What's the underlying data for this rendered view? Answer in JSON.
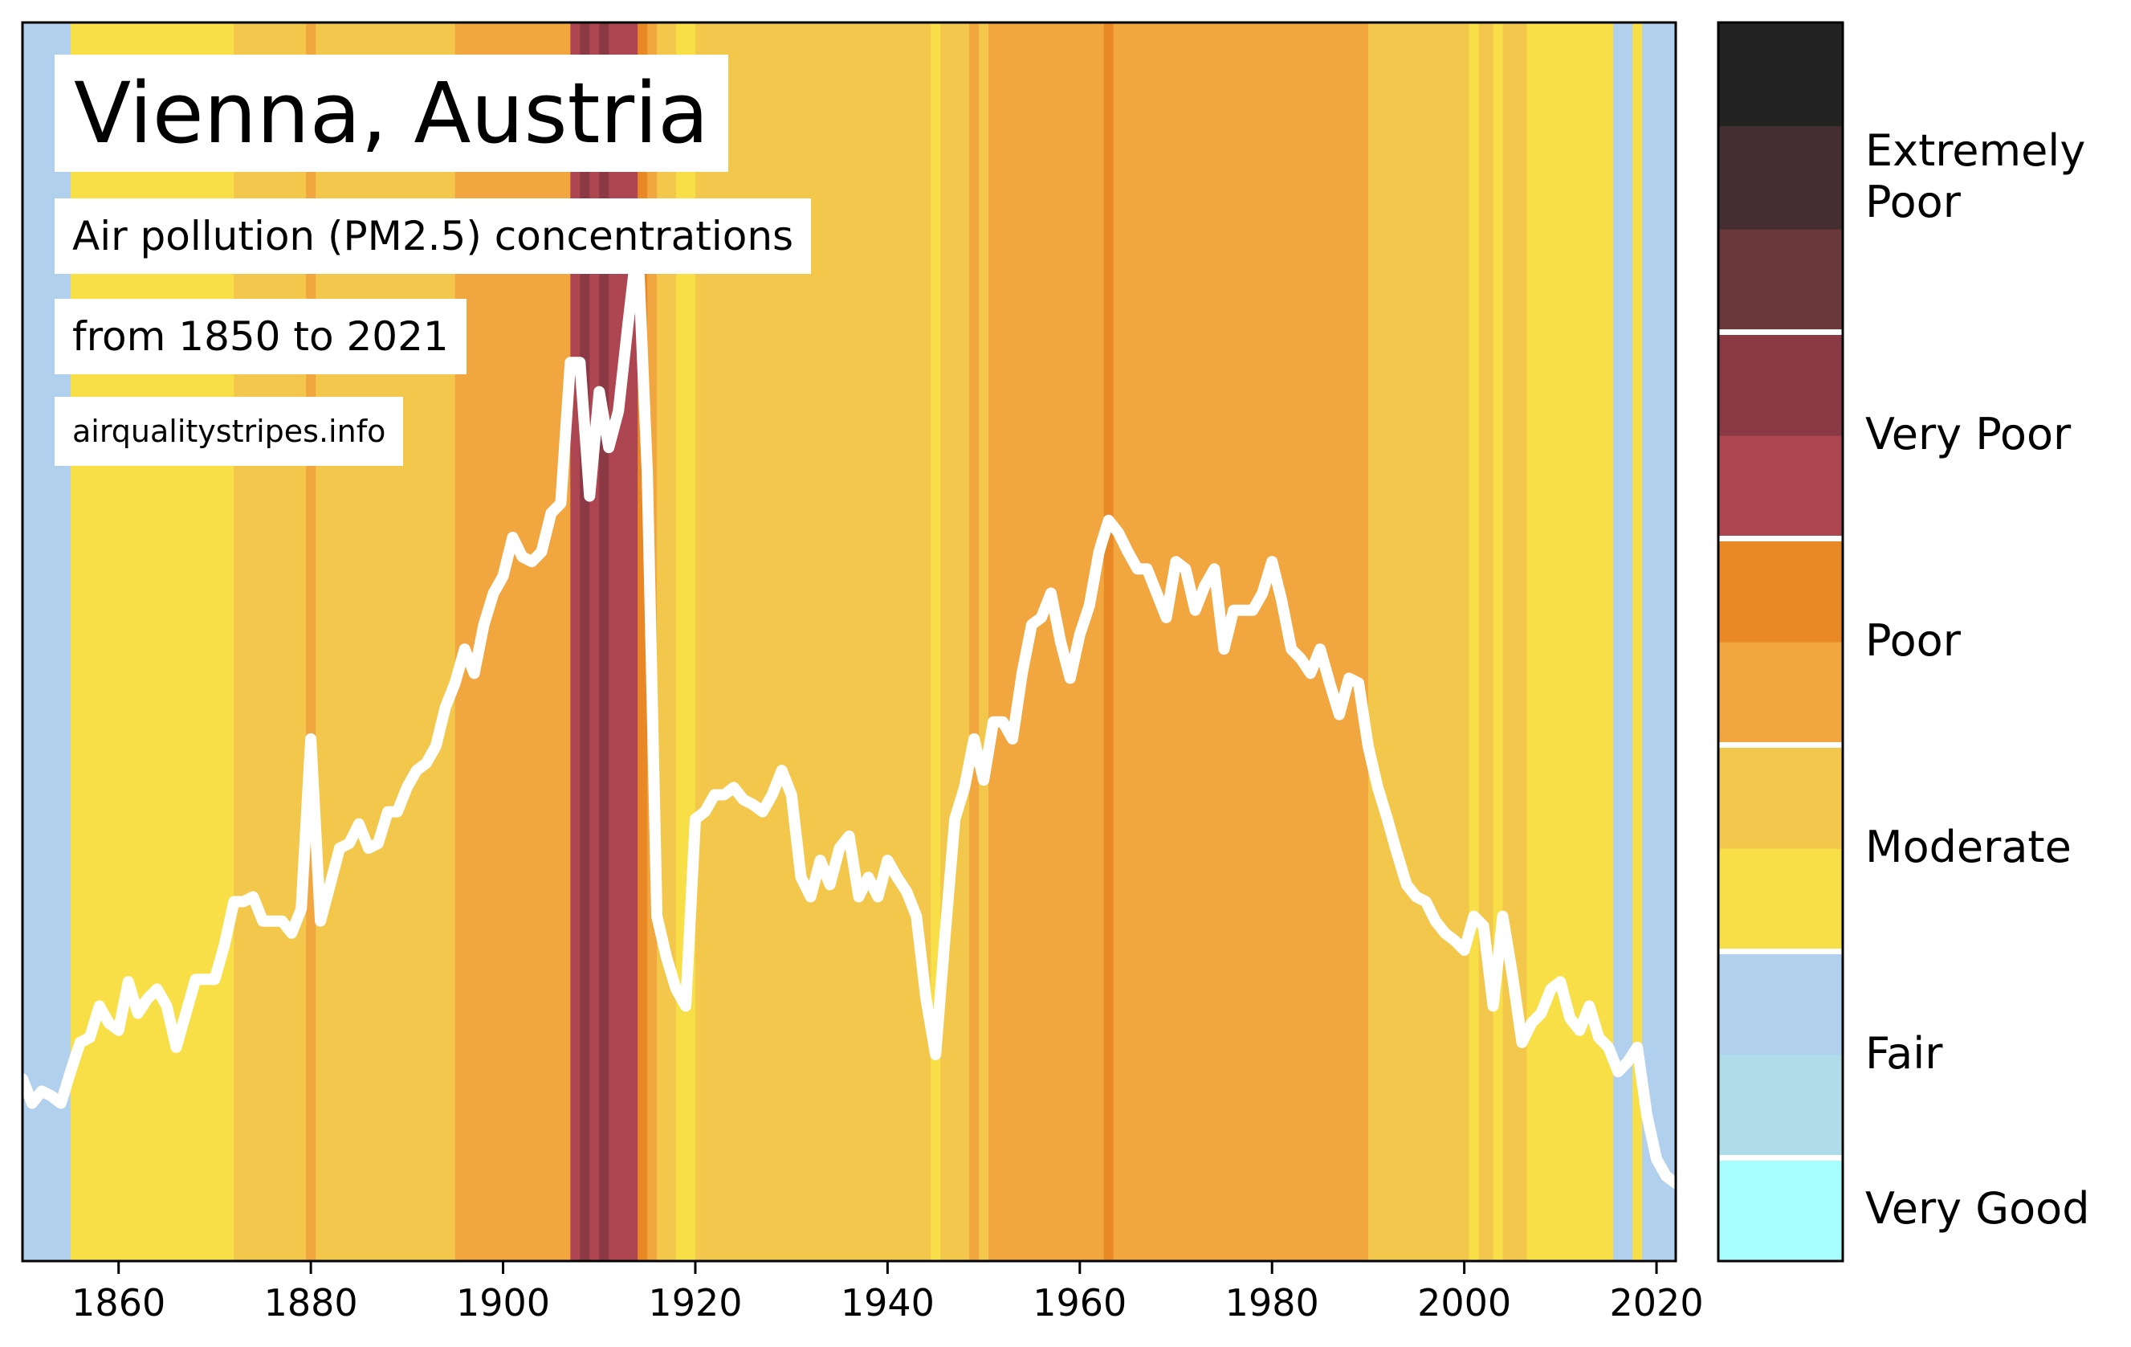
{
  "header": {
    "title": "Vienna, Austria",
    "subtitle_line1": "Air pollution (PM2.5) concentrations",
    "subtitle_line2": "from 1850 to 2021",
    "source": "airqualitystripes.info"
  },
  "chart_data": {
    "type": "line",
    "title": "Vienna, Austria",
    "xlabel": "",
    "ylabel": "",
    "xlim": [
      1850,
      2022
    ],
    "x_ticks": [
      1860,
      1880,
      1900,
      1920,
      1940,
      1960,
      1980,
      2000,
      2020
    ],
    "line_color": "#ffffff",
    "stripe_level_colors": {
      "very_good": "#a7fdff",
      "fair_low": "#b0dce9",
      "fair_high": "#b0d0ee",
      "moderate_low": "#f8df47",
      "moderate_high": "#f2c74c",
      "poor_low": "#f1a640",
      "poor_high": "#e98926",
      "very_poor_low": "#ad4650",
      "very_poor_high": "#8a3945",
      "extremely_poor_low": "#6a373b",
      "extremely_poor_mid": "#452e31",
      "extremely_poor_high": "#222222"
    },
    "colorbar": {
      "categories": [
        {
          "label": "Very Good",
          "from": 0,
          "to": 1
        },
        {
          "label": "Fair",
          "from": 1,
          "to": 3
        },
        {
          "label": "Moderate",
          "from": 3,
          "to": 5
        },
        {
          "label": "Poor",
          "from": 5,
          "to": 7
        },
        {
          "label": "Very Poor",
          "from": 7,
          "to": 9
        },
        {
          "label": "Extremely Poor",
          "from": 9,
          "to": 12
        }
      ],
      "label_lines": [
        "Very Good",
        "Fair",
        "Moderate",
        "Poor",
        "Very Poor",
        "Extremely",
        "Poor"
      ],
      "swatches": [
        "#a7fdff",
        "#b0dce9",
        "#b0d0ee",
        "#f8df47",
        "#f2c74c",
        "#f1a640",
        "#e98926",
        "#ad4650",
        "#8a3945",
        "#6a373b",
        "#452e31",
        "#222222"
      ]
    },
    "stripes": [
      {
        "from": 1850,
        "to": 1851,
        "level": "fair_high"
      },
      {
        "from": 1851,
        "to": 1855,
        "level": "fair_high"
      },
      {
        "from": 1855,
        "to": 1872,
        "level": "moderate_low"
      },
      {
        "from": 1872,
        "to": 1879.5,
        "level": "moderate_high"
      },
      {
        "from": 1879.5,
        "to": 1880.5,
        "level": "poor_low"
      },
      {
        "from": 1880.5,
        "to": 1895,
        "level": "moderate_high"
      },
      {
        "from": 1895,
        "to": 1907,
        "level": "poor_low"
      },
      {
        "from": 1907,
        "to": 1908,
        "level": "very_poor_low"
      },
      {
        "from": 1908,
        "to": 1909,
        "level": "very_poor_high"
      },
      {
        "from": 1909,
        "to": 1910,
        "level": "very_poor_low"
      },
      {
        "from": 1910,
        "to": 1911,
        "level": "very_poor_high"
      },
      {
        "from": 1911,
        "to": 1912,
        "level": "very_poor_low"
      },
      {
        "from": 1912,
        "to": 1914,
        "level": "very_poor_low"
      },
      {
        "from": 1914,
        "to": 1915,
        "level": "poor_high"
      },
      {
        "from": 1915,
        "to": 1916,
        "level": "poor_low"
      },
      {
        "from": 1916,
        "to": 1918,
        "level": "moderate_high"
      },
      {
        "from": 1918,
        "to": 1920,
        "level": "moderate_low"
      },
      {
        "from": 1920,
        "to": 1944.5,
        "level": "moderate_high"
      },
      {
        "from": 1944.5,
        "to": 1945.5,
        "level": "moderate_low"
      },
      {
        "from": 1945.5,
        "to": 1948.5,
        "level": "moderate_high"
      },
      {
        "from": 1948.5,
        "to": 1949.5,
        "level": "poor_low"
      },
      {
        "from": 1949.5,
        "to": 1950.5,
        "level": "moderate_high"
      },
      {
        "from": 1950.5,
        "to": 1962.5,
        "level": "poor_low"
      },
      {
        "from": 1962.5,
        "to": 1963.5,
        "level": "poor_high"
      },
      {
        "from": 1963.5,
        "to": 1990,
        "level": "poor_low"
      },
      {
        "from": 1990,
        "to": 2000.5,
        "level": "moderate_high"
      },
      {
        "from": 2000.5,
        "to": 2001.5,
        "level": "moderate_low"
      },
      {
        "from": 2001.5,
        "to": 2003,
        "level": "moderate_high"
      },
      {
        "from": 2003,
        "to": 2004,
        "level": "moderate_low"
      },
      {
        "from": 2004,
        "to": 2006.5,
        "level": "moderate_high"
      },
      {
        "from": 2006.5,
        "to": 2015.5,
        "level": "moderate_low"
      },
      {
        "from": 2015.5,
        "to": 2017.5,
        "level": "fair_high"
      },
      {
        "from": 2017.5,
        "to": 2018.5,
        "level": "moderate_low"
      },
      {
        "from": 2018.5,
        "to": 2022,
        "level": "fair_high"
      }
    ],
    "series": [
      {
        "values": [
          [
            1850,
            2.45
          ],
          [
            1851,
            2.35
          ],
          [
            1852,
            2.4
          ],
          [
            1853,
            2.38
          ],
          [
            1854,
            2.35
          ],
          [
            1855,
            2.48
          ],
          [
            1856,
            2.6
          ],
          [
            1857,
            2.62
          ],
          [
            1858,
            2.75
          ],
          [
            1859,
            2.68
          ],
          [
            1860,
            2.65
          ],
          [
            1861,
            2.85
          ],
          [
            1862,
            2.72
          ],
          [
            1863,
            2.78
          ],
          [
            1864,
            2.82
          ],
          [
            1865,
            2.75
          ],
          [
            1866,
            2.58
          ],
          [
            1867,
            2.72
          ],
          [
            1868,
            2.86
          ],
          [
            1869,
            2.86
          ],
          [
            1870,
            2.86
          ],
          [
            1871,
            3.0
          ],
          [
            1872,
            3.18
          ],
          [
            1873,
            3.18
          ],
          [
            1874,
            3.2
          ],
          [
            1875,
            3.1
          ],
          [
            1876,
            3.1
          ],
          [
            1877,
            3.1
          ],
          [
            1878,
            3.05
          ],
          [
            1879,
            3.15
          ],
          [
            1880,
            3.85
          ],
          [
            1881,
            3.1
          ],
          [
            1882,
            3.25
          ],
          [
            1883,
            3.4
          ],
          [
            1884,
            3.42
          ],
          [
            1885,
            3.5
          ],
          [
            1886,
            3.4
          ],
          [
            1887,
            3.42
          ],
          [
            1888,
            3.55
          ],
          [
            1889,
            3.55
          ],
          [
            1890,
            3.65
          ],
          [
            1891,
            3.72
          ],
          [
            1892,
            3.75
          ],
          [
            1893,
            3.82
          ],
          [
            1894,
            3.98
          ],
          [
            1895,
            4.08
          ],
          [
            1896,
            4.22
          ],
          [
            1897,
            4.12
          ],
          [
            1898,
            4.32
          ],
          [
            1899,
            4.45
          ],
          [
            1900,
            4.52
          ],
          [
            1901,
            4.68
          ],
          [
            1902,
            4.6
          ],
          [
            1903,
            4.58
          ],
          [
            1904,
            4.62
          ],
          [
            1905,
            4.78
          ],
          [
            1906,
            4.82
          ],
          [
            1907,
            5.4
          ],
          [
            1908,
            5.4
          ],
          [
            1909,
            4.85
          ],
          [
            1910,
            5.28
          ],
          [
            1911,
            5.05
          ],
          [
            1912,
            5.2
          ],
          [
            1913,
            5.56
          ],
          [
            1914,
            5.9
          ],
          [
            1915,
            4.95
          ],
          [
            1916,
            3.12
          ],
          [
            1917,
            2.95
          ],
          [
            1918,
            2.82
          ],
          [
            1919,
            2.75
          ],
          [
            1920,
            3.52
          ],
          [
            1921,
            3.55
          ],
          [
            1922,
            3.62
          ],
          [
            1923,
            3.62
          ],
          [
            1924,
            3.65
          ],
          [
            1925,
            3.6
          ],
          [
            1926,
            3.58
          ],
          [
            1927,
            3.55
          ],
          [
            1928,
            3.62
          ],
          [
            1929,
            3.72
          ],
          [
            1930,
            3.62
          ],
          [
            1931,
            3.28
          ],
          [
            1932,
            3.2
          ],
          [
            1933,
            3.35
          ],
          [
            1934,
            3.25
          ],
          [
            1935,
            3.4
          ],
          [
            1936,
            3.45
          ],
          [
            1937,
            3.2
          ],
          [
            1938,
            3.28
          ],
          [
            1939,
            3.2
          ],
          [
            1940,
            3.35
          ],
          [
            1941,
            3.28
          ],
          [
            1942,
            3.22
          ],
          [
            1943,
            3.12
          ],
          [
            1944,
            2.78
          ],
          [
            1945,
            2.55
          ],
          [
            1946,
            3.05
          ],
          [
            1947,
            3.52
          ],
          [
            1948,
            3.65
          ],
          [
            1949,
            3.85
          ],
          [
            1950,
            3.68
          ],
          [
            1951,
            3.92
          ],
          [
            1952,
            3.92
          ],
          [
            1953,
            3.85
          ],
          [
            1954,
            4.12
          ],
          [
            1955,
            4.32
          ],
          [
            1956,
            4.35
          ],
          [
            1957,
            4.45
          ],
          [
            1958,
            4.25
          ],
          [
            1959,
            4.1
          ],
          [
            1960,
            4.28
          ],
          [
            1961,
            4.4
          ],
          [
            1962,
            4.62
          ],
          [
            1963,
            4.75
          ],
          [
            1964,
            4.7
          ],
          [
            1965,
            4.62
          ],
          [
            1966,
            4.55
          ],
          [
            1967,
            4.55
          ],
          [
            1968,
            4.45
          ],
          [
            1969,
            4.35
          ],
          [
            1970,
            4.58
          ],
          [
            1971,
            4.55
          ],
          [
            1972,
            4.38
          ],
          [
            1973,
            4.48
          ],
          [
            1974,
            4.55
          ],
          [
            1975,
            4.22
          ],
          [
            1976,
            4.38
          ],
          [
            1977,
            4.38
          ],
          [
            1978,
            4.38
          ],
          [
            1979,
            4.45
          ],
          [
            1980,
            4.58
          ],
          [
            1981,
            4.42
          ],
          [
            1982,
            4.22
          ],
          [
            1983,
            4.18
          ],
          [
            1984,
            4.12
          ],
          [
            1985,
            4.22
          ],
          [
            1986,
            4.08
          ],
          [
            1987,
            3.95
          ],
          [
            1988,
            4.1
          ],
          [
            1989,
            4.08
          ],
          [
            1990,
            3.82
          ],
          [
            1991,
            3.65
          ],
          [
            1992,
            3.52
          ],
          [
            1993,
            3.38
          ],
          [
            1994,
            3.25
          ],
          [
            1995,
            3.2
          ],
          [
            1996,
            3.18
          ],
          [
            1997,
            3.1
          ],
          [
            1998,
            3.05
          ],
          [
            1999,
            3.02
          ],
          [
            2000,
            2.98
          ],
          [
            2001,
            3.12
          ],
          [
            2002,
            3.08
          ],
          [
            2003,
            2.75
          ],
          [
            2004,
            3.12
          ],
          [
            2005,
            2.88
          ],
          [
            2006,
            2.6
          ],
          [
            2007,
            2.68
          ],
          [
            2008,
            2.72
          ],
          [
            2009,
            2.82
          ],
          [
            2010,
            2.85
          ],
          [
            2011,
            2.7
          ],
          [
            2012,
            2.65
          ],
          [
            2013,
            2.75
          ],
          [
            2014,
            2.62
          ],
          [
            2015,
            2.58
          ],
          [
            2016,
            2.48
          ],
          [
            2017,
            2.52
          ],
          [
            2018,
            2.58
          ],
          [
            2019,
            2.3
          ],
          [
            2020,
            2.12
          ],
          [
            2021,
            2.05
          ],
          [
            2022,
            2.02
          ]
        ]
      }
    ]
  }
}
